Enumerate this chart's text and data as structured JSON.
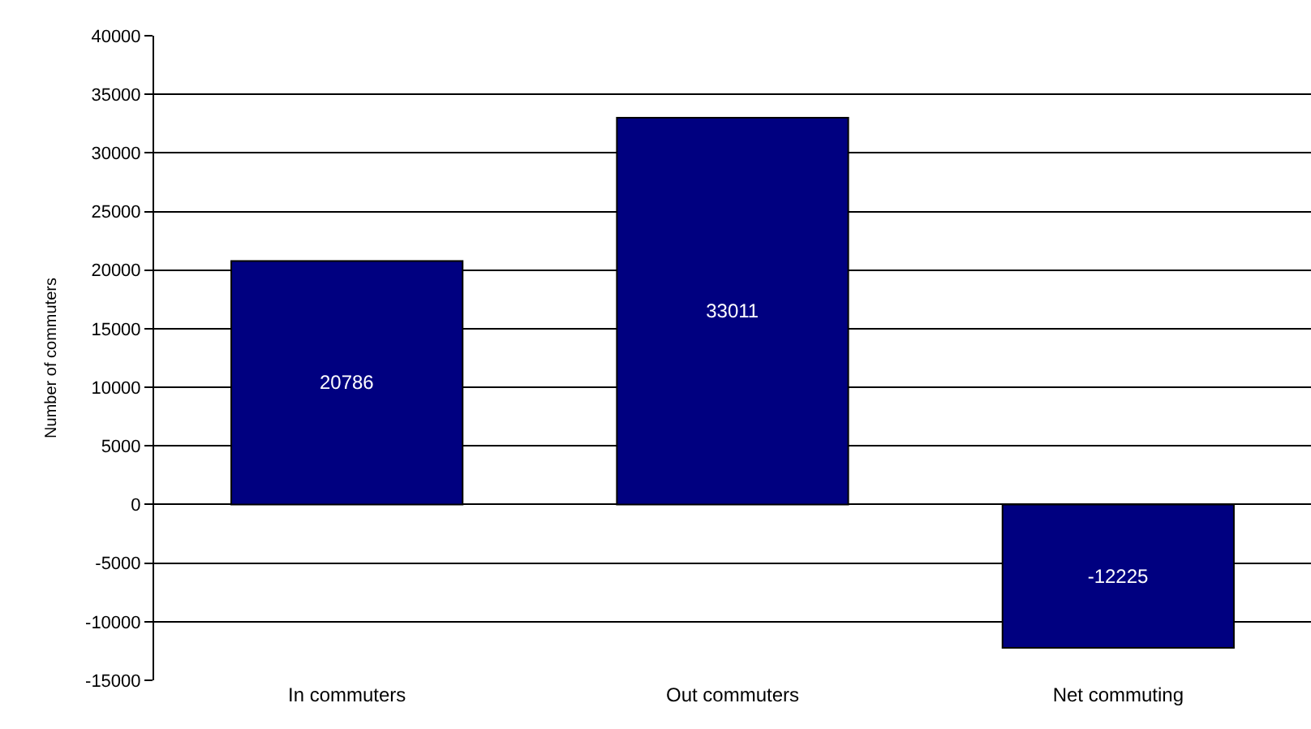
{
  "chart_data": {
    "type": "bar",
    "ylabel": "Number of commuters",
    "categories": [
      "In commuters",
      "Out commuters",
      "Net commuting"
    ],
    "values": [
      20786,
      33011,
      -12225
    ],
    "color": "#000080",
    "ylim": [
      -15000,
      40000
    ],
    "yticks": [
      -15000,
      -10000,
      -5000,
      0,
      5000,
      10000,
      15000,
      20000,
      25000,
      30000,
      35000,
      40000
    ],
    "grid": "y",
    "data_labels": true
  }
}
